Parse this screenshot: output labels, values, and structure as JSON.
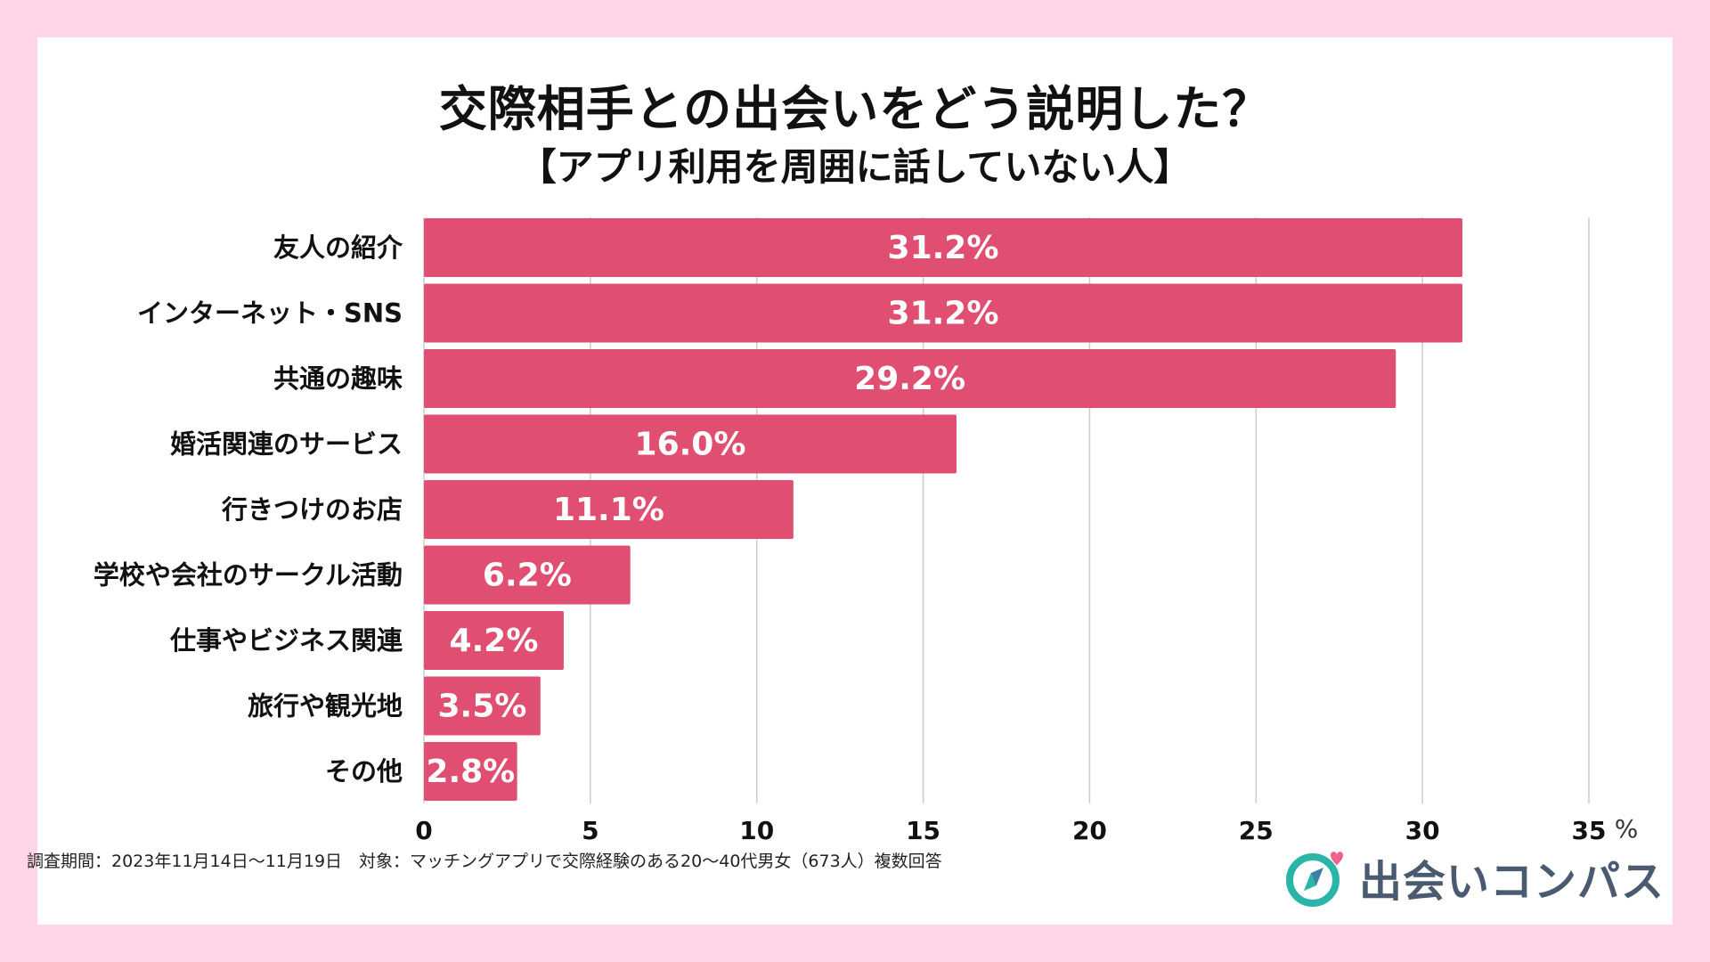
{
  "header": {
    "title": "交際相手との出会いをどう説明した？",
    "subtitle": "【アプリ利用を周囲に話していない人】"
  },
  "chart_data": {
    "type": "bar",
    "orientation": "horizontal",
    "title": "交際相手との出会いをどう説明した？",
    "subtitle": "【アプリ利用を周囲に話していない人】",
    "categories": [
      "友人の紹介",
      "インターネット・SNS",
      "共通の趣味",
      "婚活関連のサービス",
      "行きつけのお店",
      "学校や会社のサークル活動",
      "仕事やビジネス関連",
      "旅行や観光地",
      "その他"
    ],
    "values": [
      31.2,
      31.2,
      29.2,
      16.0,
      11.1,
      6.2,
      4.2,
      3.5,
      2.8
    ],
    "data_labels": [
      "31.2%",
      "31.2%",
      "29.2%",
      "16.0%",
      "11.1%",
      "6.2%",
      "4.2%",
      "3.5%",
      "2.8%"
    ],
    "xlim": [
      0,
      35
    ],
    "xticks": [
      0,
      5,
      10,
      15,
      20,
      25,
      30,
      35
    ],
    "xtick_labels": [
      "0",
      "5",
      "10",
      "15",
      "20",
      "25",
      "30",
      "35"
    ],
    "unit": "%",
    "bar_color": "#e04e72",
    "grid": true
  },
  "footnote": "調査期間：2023年11月14日〜11月19日　対象：マッチングアプリで交際経験のある20〜40代男女（673人）複数回答",
  "logo": {
    "text": "出会いコンパス",
    "icon": "compass-heart-icon",
    "accent_color": "#2bb5a8",
    "heart_color": "#f06090"
  }
}
